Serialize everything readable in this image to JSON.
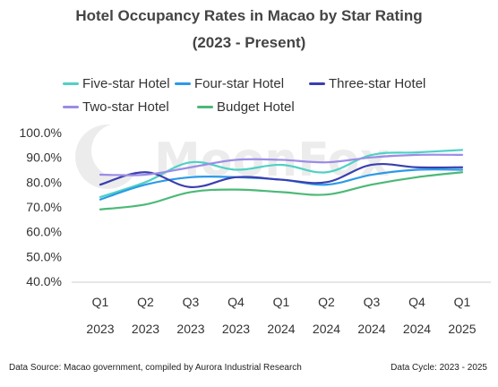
{
  "header": {
    "title": "Hotel Occupancy Rates in Macao by Star Rating",
    "subtitle": "(2023 - Present)"
  },
  "watermark": {
    "text": "MoonFox"
  },
  "footer": {
    "source": "Data Source: Macao government, compiled by Aurora Industrial Research",
    "cycle": "Data Cycle: 2023 - 2025"
  },
  "chart_data": {
    "type": "line",
    "title": "Hotel Occupancy Rates in Macao by Star Rating",
    "subtitle": "(2023 - Present)",
    "xlabel": "",
    "ylabel": "",
    "categories": [
      [
        "Q1",
        "2023"
      ],
      [
        "Q2",
        "2023"
      ],
      [
        "Q3",
        "2023"
      ],
      [
        "Q4",
        "2023"
      ],
      [
        "Q1",
        "2024"
      ],
      [
        "Q2",
        "2024"
      ],
      [
        "Q3",
        "2024"
      ],
      [
        "Q4",
        "2024"
      ],
      [
        "Q1",
        "2025"
      ]
    ],
    "y_ticks": [
      "40.0%",
      "50.0%",
      "60.0%",
      "70.0%",
      "80.0%",
      "90.0%",
      "100.0%"
    ],
    "ylim": [
      40,
      100
    ],
    "grid": false,
    "legend_position": "top",
    "series": [
      {
        "name": "Five-star Hotel",
        "color": "#4fd1c5",
        "values": [
          74,
          80,
          88,
          85,
          87,
          84,
          91,
          92,
          93
        ]
      },
      {
        "name": "Four-star Hotel",
        "color": "#2b9ae8",
        "values": [
          73,
          79,
          82,
          82,
          81,
          79,
          83,
          85,
          85
        ]
      },
      {
        "name": "Three-star Hotel",
        "color": "#3a3fae",
        "values": [
          79,
          84,
          78,
          82,
          81,
          80,
          87,
          86,
          86
        ]
      },
      {
        "name": "Two-star Hotel",
        "color": "#9b8de6",
        "values": [
          83,
          83,
          86,
          89,
          89,
          88,
          90,
          91,
          91
        ]
      },
      {
        "name": "Budget Hotel",
        "color": "#4cb977",
        "values": [
          69,
          71,
          76,
          77,
          76,
          75,
          79,
          82,
          84
        ]
      }
    ]
  }
}
